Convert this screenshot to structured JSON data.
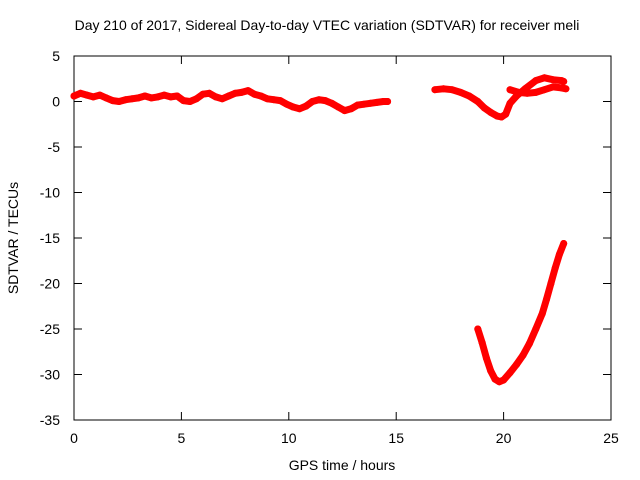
{
  "chart_data": {
    "type": "line",
    "title": "Day 210 of 2017, Sidereal Day-to-day VTEC variation (SDTVAR) for receiver meli",
    "xlabel": "GPS time / hours",
    "ylabel": "SDTVAR / TECUs",
    "xlim": [
      0,
      25
    ],
    "ylim": [
      -35,
      5
    ],
    "xticks": [
      0,
      5,
      10,
      15,
      20,
      25
    ],
    "yticks": [
      5,
      0,
      -5,
      -10,
      -15,
      -20,
      -25,
      -30,
      -35
    ],
    "grid": false,
    "legend": "none",
    "series_color": "#ff0000",
    "series": [
      {
        "name": "segment-1",
        "x": [
          0.0,
          0.3,
          0.6,
          0.9,
          1.2,
          1.5,
          1.8,
          2.1,
          2.4,
          2.7,
          3.0,
          3.3,
          3.6,
          3.9,
          4.2,
          4.5,
          4.8,
          5.1,
          5.4,
          5.7,
          6.0,
          6.3,
          6.6,
          6.9,
          7.2,
          7.5,
          7.8,
          8.1,
          8.4,
          8.7,
          9.0,
          9.3,
          9.6,
          9.9,
          10.2,
          10.5,
          10.8,
          11.1,
          11.4,
          11.7,
          12.0,
          12.3,
          12.6,
          12.9,
          13.2,
          13.5,
          13.8,
          14.1,
          14.4,
          14.6
        ],
        "y": [
          0.6,
          0.9,
          0.7,
          0.5,
          0.7,
          0.4,
          0.1,
          0.0,
          0.2,
          0.3,
          0.4,
          0.6,
          0.4,
          0.5,
          0.7,
          0.5,
          0.6,
          0.1,
          0.0,
          0.3,
          0.8,
          0.9,
          0.5,
          0.3,
          0.6,
          0.9,
          1.0,
          1.2,
          0.8,
          0.6,
          0.3,
          0.2,
          0.1,
          -0.3,
          -0.6,
          -0.8,
          -0.5,
          0.0,
          0.2,
          0.1,
          -0.2,
          -0.6,
          -1.0,
          -0.8,
          -0.4,
          -0.3,
          -0.2,
          -0.1,
          0.0,
          0.0
        ]
      },
      {
        "name": "segment-2",
        "x": [
          16.8,
          17.2,
          17.6,
          18.0,
          18.4,
          18.8,
          19.1,
          19.4,
          19.7,
          19.9,
          20.1,
          20.3,
          20.6,
          21.0,
          21.5,
          21.9,
          22.3,
          22.7,
          22.8
        ],
        "y": [
          1.3,
          1.4,
          1.3,
          1.0,
          0.6,
          0.0,
          -0.7,
          -1.2,
          -1.6,
          -1.7,
          -1.4,
          -0.2,
          0.6,
          1.4,
          2.3,
          2.6,
          2.4,
          2.3,
          2.2
        ]
      },
      {
        "name": "segment-3",
        "x": [
          20.3,
          20.7,
          21.1,
          21.5,
          21.9,
          22.3,
          22.7,
          22.9
        ],
        "y": [
          1.3,
          1.0,
          0.9,
          1.0,
          1.3,
          1.6,
          1.5,
          1.4
        ]
      },
      {
        "name": "segment-4",
        "x": [
          18.8,
          19.0,
          19.2,
          19.4,
          19.6,
          19.8,
          20.0,
          20.3,
          20.6,
          20.9,
          21.2,
          21.5,
          21.8,
          22.0,
          22.2,
          22.4,
          22.6,
          22.8
        ],
        "y": [
          -25.0,
          -26.5,
          -28.2,
          -29.6,
          -30.5,
          -30.8,
          -30.6,
          -29.8,
          -28.9,
          -27.9,
          -26.6,
          -25.0,
          -23.3,
          -21.7,
          -20.0,
          -18.3,
          -16.8,
          -15.6
        ]
      }
    ]
  }
}
